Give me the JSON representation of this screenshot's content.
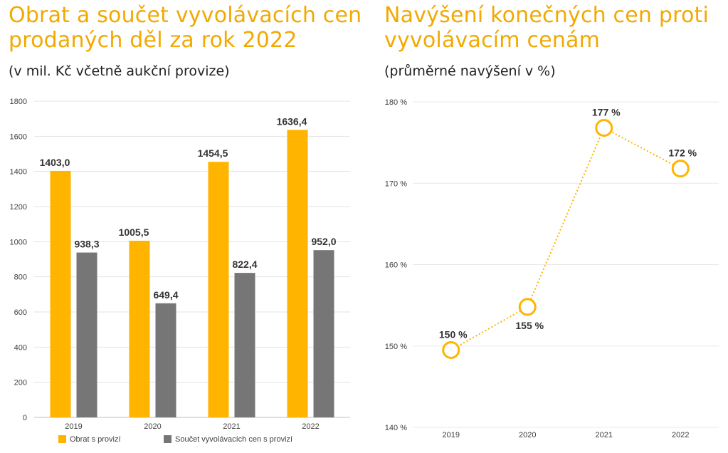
{
  "left": {
    "title": "Obrat a součet vyvolávacích cen prodaných děl za rok 2022",
    "subtitle": "(v mil. Kč včetně aukční provize)"
  },
  "right": {
    "title": "Navýšení konečných cen proti vyvolávacím cenám",
    "subtitle": "(průměrné navýšení v %)"
  },
  "colors": {
    "accent": "#ffb400",
    "gray": "#767676",
    "title": "#f2a900"
  },
  "chart_data": [
    {
      "type": "bar",
      "categories": [
        "2019",
        "2020",
        "2021",
        "2022"
      ],
      "series": [
        {
          "name": "Obrat s provizí",
          "values": [
            1403.0,
            1005.5,
            1454.5,
            1636.4
          ],
          "labels": [
            "1403,0",
            "1005,5",
            "1454,5",
            "1636,4"
          ]
        },
        {
          "name": "Součet vyvolávacích cen s provizí",
          "values": [
            938.3,
            649.4,
            822.4,
            952.0
          ],
          "labels": [
            "938,3",
            "649,4",
            "822,4",
            "952,0"
          ]
        }
      ],
      "ylim": [
        0,
        1800
      ],
      "yticks": [
        "0",
        "200",
        "400",
        "600",
        "800",
        "1000",
        "1200",
        "1400",
        "1600",
        "1800"
      ],
      "grid": true,
      "legend": "bottom"
    },
    {
      "type": "line",
      "categories": [
        "2019",
        "2020",
        "2021",
        "2022"
      ],
      "values": [
        149.5,
        154.8,
        176.8,
        171.8
      ],
      "labels": [
        "150 %",
        "155 %",
        "177 %",
        "172 %"
      ],
      "ylim": [
        140,
        180
      ],
      "yticks": [
        "140 %",
        "150 %",
        "160 %",
        "170 %",
        "180 %"
      ],
      "grid": true
    }
  ]
}
